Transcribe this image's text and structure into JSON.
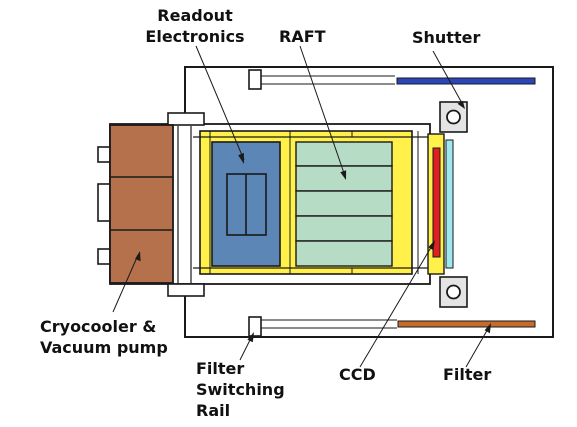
{
  "labels": {
    "readout": [
      "Readout",
      "Electronics"
    ],
    "raft": "RAFT",
    "shutter": "Shutter",
    "cryocooler": [
      "Cryocooler &",
      "Vacuum pump"
    ],
    "filter_rail": [
      "Filter",
      "Switching",
      "Rail"
    ],
    "ccd": "CCD",
    "filter": "Filter"
  },
  "colors": {
    "outline": "#1a1a1a",
    "cryocooler": "#b5714b",
    "frame": "#fff04a",
    "readout_board": "#5b86b5",
    "raft": "#b6dcc6",
    "ccd": "#e02020",
    "cyan_window": "#9fe8ee",
    "shutter_bar": "#2a46b8",
    "filter_bar": "#c56b2c"
  }
}
